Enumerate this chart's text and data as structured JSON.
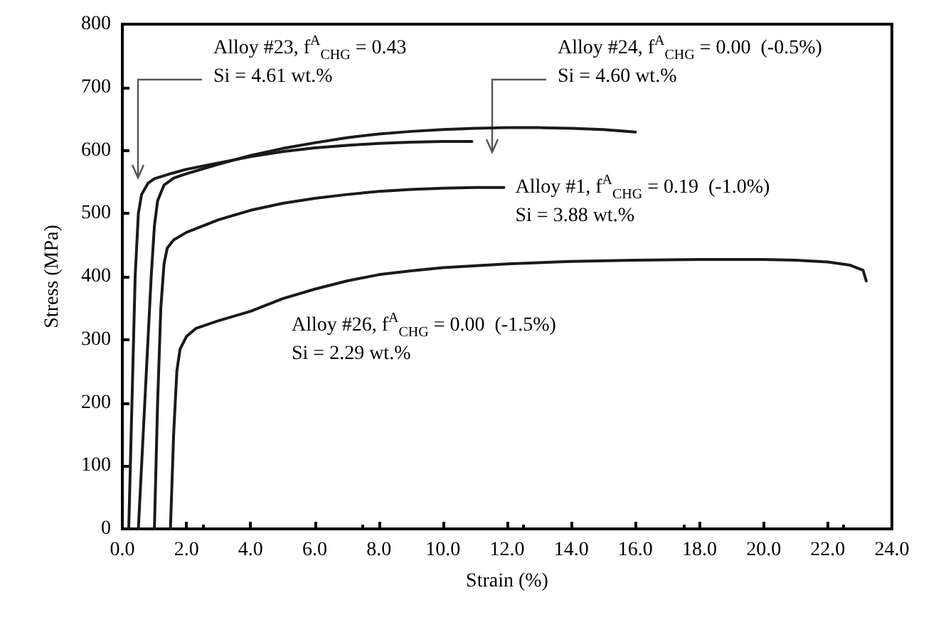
{
  "chart_data": {
    "type": "line",
    "xlabel": "Strain (%)",
    "ylabel": "Stress (MPa)",
    "xlim": [
      0,
      24
    ],
    "xticks": [
      {
        "value": 0,
        "label": "0.0"
      },
      {
        "value": 2,
        "label": "2.0"
      },
      {
        "value": 4,
        "label": "4.0"
      },
      {
        "value": 6,
        "label": "6.0"
      },
      {
        "value": 8,
        "label": "8.0"
      },
      {
        "value": 10,
        "label": "10.0"
      },
      {
        "value": 12,
        "label": "12.0"
      },
      {
        "value": 14,
        "label": "14.0"
      },
      {
        "value": 16,
        "label": "16.0"
      },
      {
        "value": 18,
        "label": "18.0"
      },
      {
        "value": 20,
        "label": "20.0"
      },
      {
        "value": 22,
        "label": "22.0"
      },
      {
        "value": 24,
        "label": "24.0"
      }
    ],
    "ylim": [
      0,
      800
    ],
    "yticks": [
      0,
      100,
      200,
      300,
      400,
      500,
      600,
      700,
      800
    ],
    "grid": false,
    "marker": "none",
    "line_style": "solid",
    "series": [
      {
        "color": "#1a1a1a",
        "x": [
          0.2,
          0.3,
          0.4,
          0.5,
          0.6,
          0.8,
          1.0,
          1.5,
          2.0,
          3.0,
          4.0,
          5.0,
          6.0,
          7.0,
          8.0,
          9.0,
          10.0,
          10.9
        ],
        "values": [
          0,
          200,
          400,
          500,
          530,
          548,
          555,
          563,
          570,
          580,
          590,
          598,
          604,
          608,
          611,
          613,
          614,
          614
        ]
      },
      {
        "color": "#1a1a1a",
        "x": [
          0.5,
          0.7,
          0.9,
          1.0,
          1.1,
          1.3,
          1.6,
          2.0,
          3.0,
          4.0,
          5.0,
          6.0,
          7.0,
          8.0,
          9.0,
          10.0,
          11.0,
          12.0,
          13.0,
          14.0,
          15.0,
          16.0
        ],
        "values": [
          0,
          200,
          400,
          480,
          520,
          545,
          556,
          563,
          578,
          592,
          603,
          612,
          620,
          626,
          630,
          633,
          635,
          636,
          636,
          635,
          633,
          629
        ]
      },
      {
        "color": "#1a1a1a",
        "x": [
          1.0,
          1.1,
          1.2,
          1.3,
          1.4,
          1.6,
          2.0,
          3.0,
          4.0,
          5.0,
          6.0,
          7.0,
          8.0,
          9.0,
          10.0,
          11.0,
          11.9
        ],
        "values": [
          0,
          200,
          350,
          420,
          445,
          458,
          470,
          490,
          505,
          516,
          524,
          530,
          535,
          538,
          540,
          541,
          541
        ]
      },
      {
        "color": "#1a1a1a",
        "x": [
          1.5,
          1.6,
          1.7,
          1.8,
          2.0,
          2.3,
          3.0,
          4.0,
          5.0,
          6.0,
          7.0,
          8.0,
          9.0,
          10.0,
          12.0,
          14.0,
          16.0,
          18.0,
          20.0,
          21.0,
          22.0,
          22.7,
          23.1,
          23.2
        ],
        "values": [
          0,
          150,
          250,
          285,
          305,
          318,
          330,
          345,
          365,
          380,
          393,
          403,
          409,
          414,
          420,
          424,
          426,
          427,
          427,
          426,
          423,
          418,
          410,
          393
        ]
      }
    ],
    "annotations": [
      "Alloy #23, f$^{A}$$_{CHG}$ = 0.43\nSi = 4.61 wt.%",
      "Alloy #24, f$^{A}$$_{CHG}$ = 0.00  (-0.5%)\nSi = 4.60 wt.%",
      {
        "text": "Alloy #1, f$^{A}$$_{CHG}$ = 0.19  (-1.0%)\nSi = 3.88 wt.%",
        "x": 11.9,
        "y": 541
      },
      "Alloy #26, f$^{A}$$_{CHG}$ = 0.00  (-1.5%)\nSi = 2.29 wt.%"
    ]
  }
}
